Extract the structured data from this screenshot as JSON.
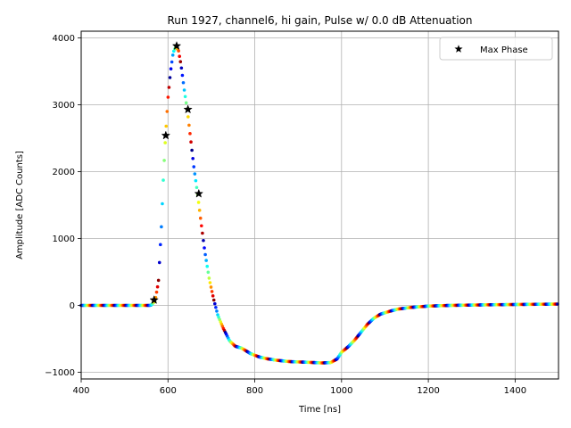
{
  "chart_data": {
    "type": "scatter",
    "title": "Run 1927, channel6, hi gain, Pulse w/ 0.0 dB Attenuation",
    "xlabel": "Time [ns]",
    "ylabel": "Amplitude [ADC Counts]",
    "xlim": [
      400,
      1500
    ],
    "ylim": [
      -1100,
      4100
    ],
    "xticks": [
      400,
      600,
      800,
      1000,
      1200,
      1400
    ],
    "yticks": [
      -1000,
      0,
      1000,
      2000,
      3000,
      4000
    ],
    "xtick_labels": [
      "400",
      "600",
      "800",
      "1000",
      "1200",
      "1400"
    ],
    "ytick_labels": [
      "−1000",
      "0",
      "1000",
      "2000",
      "3000",
      "4000"
    ],
    "grid": true,
    "legend": {
      "position": "upper-right",
      "entries": [
        "Max Phase"
      ]
    },
    "colormap": "jet",
    "waveform_points": [
      [
        400,
        0
      ],
      [
        560,
        0
      ],
      [
        570,
        60
      ],
      [
        578,
        350
      ],
      [
        585,
        1200
      ],
      [
        590,
        2000
      ],
      [
        595,
        2600
      ],
      [
        600,
        3100
      ],
      [
        606,
        3500
      ],
      [
        612,
        3780
      ],
      [
        618,
        3870
      ],
      [
        624,
        3820
      ],
      [
        630,
        3600
      ],
      [
        638,
        3200
      ],
      [
        645,
        2900
      ],
      [
        652,
        2500
      ],
      [
        660,
        2050
      ],
      [
        668,
        1680
      ],
      [
        676,
        1250
      ],
      [
        685,
        800
      ],
      [
        695,
        400
      ],
      [
        705,
        100
      ],
      [
        715,
        -150
      ],
      [
        728,
        -350
      ],
      [
        742,
        -530
      ],
      [
        755,
        -610
      ],
      [
        770,
        -640
      ],
      [
        790,
        -720
      ],
      [
        810,
        -770
      ],
      [
        830,
        -800
      ],
      [
        850,
        -820
      ],
      [
        880,
        -840
      ],
      [
        920,
        -850
      ],
      [
        955,
        -860
      ],
      [
        975,
        -855
      ],
      [
        990,
        -800
      ],
      [
        1000,
        -700
      ],
      [
        1015,
        -620
      ],
      [
        1030,
        -520
      ],
      [
        1045,
        -400
      ],
      [
        1060,
        -280
      ],
      [
        1075,
        -190
      ],
      [
        1090,
        -130
      ],
      [
        1110,
        -90
      ],
      [
        1130,
        -55
      ],
      [
        1160,
        -30
      ],
      [
        1200,
        -10
      ],
      [
        1250,
        0
      ],
      [
        1350,
        10
      ],
      [
        1500,
        20
      ]
    ],
    "max_phase_points": [
      {
        "x": 568,
        "y": 80
      },
      {
        "x": 595,
        "y": 2540
      },
      {
        "x": 620,
        "y": 3880
      },
      {
        "x": 646,
        "y": 2930
      },
      {
        "x": 671,
        "y": 1670
      }
    ]
  }
}
